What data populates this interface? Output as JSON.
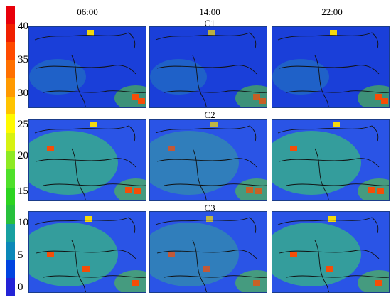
{
  "colorbar": {
    "ticks": [
      "40",
      "35",
      "30",
      "25",
      "20",
      "15",
      "10",
      "5",
      "0"
    ],
    "colors": [
      "#2323d6",
      "#0044e0",
      "#0b88b8",
      "#17a0a0",
      "#27c03c",
      "#2cd420",
      "#4fe02a",
      "#8eea22",
      "#d7f211",
      "#fffa00",
      "#ffc400",
      "#ff9a00",
      "#ff7000",
      "#ff4a00",
      "#f02000",
      "#e8000a"
    ]
  },
  "columns": [
    "06:00",
    "14:00",
    "22:00"
  ],
  "rows": [
    "C1",
    "C2",
    "C3"
  ]
}
